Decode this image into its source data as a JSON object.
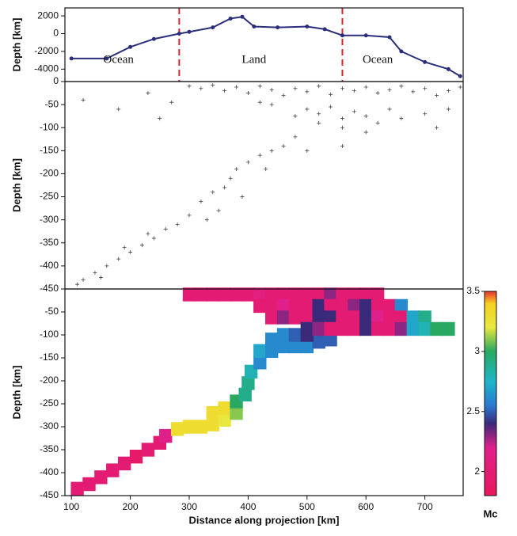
{
  "chart_data": [
    {
      "type": "line",
      "ylabel": "Depth [km]",
      "xlim": [
        89,
        765
      ],
      "ylim": [
        -5400,
        2900
      ],
      "yticks": [
        2000,
        0,
        -2000,
        -4000
      ],
      "x": [
        100,
        160,
        200,
        240,
        283,
        300,
        340,
        370,
        390,
        410,
        450,
        500,
        530,
        560,
        600,
        640,
        660,
        700,
        740,
        760
      ],
      "series": [
        {
          "color": "#2b2f7a",
          "values": [
            -2800,
            -2800,
            -1500,
            -600,
            0,
            200,
            700,
            1700,
            1900,
            800,
            700,
            800,
            500,
            -200,
            -200,
            -400,
            -2000,
            -3200,
            -4000,
            -4800
          ]
        }
      ],
      "boundaries": [
        283,
        560
      ],
      "boundary_color": "#e0202a",
      "annotations": [
        {
          "text": "Ocean",
          "x": 180,
          "y": -3000
        },
        {
          "text": "Land",
          "x": 410,
          "y": -3000
        },
        {
          "text": "Ocean",
          "x": 620,
          "y": -3000
        }
      ]
    },
    {
      "type": "scatter",
      "ylabel": "Depth [km]",
      "xlim": [
        89,
        765
      ],
      "ylim": [
        -450,
        0
      ],
      "yticks": [
        0,
        -50,
        -100,
        -150,
        -200,
        -250,
        -300,
        -350,
        -400,
        -450
      ],
      "color": "#444",
      "x": [
        300,
        320,
        340,
        360,
        380,
        400,
        420,
        440,
        460,
        480,
        500,
        520,
        540,
        560,
        580,
        600,
        620,
        640,
        660,
        680,
        700,
        720,
        740,
        760,
        500,
        520,
        540,
        560,
        580,
        600,
        620,
        640,
        560,
        600,
        520,
        480,
        440,
        420,
        660,
        700,
        740,
        720,
        480,
        460,
        440,
        420,
        400,
        380,
        370,
        360,
        340,
        320,
        350,
        300,
        280,
        260,
        240,
        220,
        200,
        180,
        160,
        140,
        120,
        110,
        150,
        190,
        230,
        330,
        390,
        430,
        500,
        560,
        120,
        180,
        230,
        270,
        250
      ],
      "y": [
        -10,
        -15,
        -8,
        -20,
        -12,
        -25,
        -10,
        -18,
        -30,
        -15,
        -22,
        -10,
        -28,
        -15,
        -20,
        -12,
        -25,
        -18,
        -10,
        -22,
        -15,
        -30,
        -20,
        -12,
        -60,
        -70,
        -55,
        -80,
        -65,
        -75,
        -90,
        -60,
        -100,
        -110,
        -90,
        -75,
        -50,
        -45,
        -80,
        -70,
        -60,
        -100,
        -120,
        -140,
        -150,
        -160,
        -175,
        -190,
        -210,
        -230,
        -240,
        -260,
        -280,
        -290,
        -310,
        -320,
        -340,
        -355,
        -370,
        -385,
        -400,
        -415,
        -430,
        -440,
        -425,
        -360,
        -330,
        -300,
        -250,
        -190,
        -150,
        -140,
        -40,
        -60,
        -25,
        -45,
        -80
      ]
    },
    {
      "type": "heatmap",
      "ylabel": "Depth [km]",
      "xlabel": "Distance along projection  [km]",
      "xlim": [
        89,
        765
      ],
      "ylim": [
        -450,
        0
      ],
      "xticks": [
        100,
        200,
        300,
        400,
        500,
        600,
        700
      ],
      "yticks": [
        -50,
        -100,
        -150,
        -200,
        -250,
        -300,
        -350,
        -400,
        -450
      ],
      "x": [
        110,
        130,
        150,
        170,
        190,
        210,
        230,
        250,
        260,
        280,
        300,
        320,
        340,
        340,
        360,
        360,
        380,
        380,
        395,
        400,
        405,
        420,
        420,
        440,
        460,
        480,
        500,
        520,
        540,
        440,
        460,
        480,
        500,
        300,
        320,
        340,
        360,
        380,
        400,
        420,
        440,
        460,
        480,
        500,
        520,
        540,
        560,
        580,
        600,
        620,
        420,
        440,
        460,
        480,
        500,
        520,
        540,
        560,
        580,
        600,
        620,
        640,
        660,
        440,
        460,
        480,
        500,
        520,
        540,
        560,
        580,
        600,
        620,
        640,
        660,
        680,
        700,
        500,
        520,
        540,
        560,
        580,
        600,
        620,
        640,
        660,
        680,
        700,
        720,
        740
      ],
      "y": [
        -435,
        -425,
        -410,
        -395,
        -380,
        -365,
        -350,
        -335,
        -320,
        -305,
        -300,
        -300,
        -295,
        -270,
        -285,
        -260,
        -270,
        -245,
        -230,
        -205,
        -180,
        -160,
        -135,
        -135,
        -125,
        -125,
        -125,
        -115,
        -110,
        -110,
        -100,
        -100,
        -100,
        -12,
        -12,
        -12,
        -12,
        -12,
        -12,
        -12,
        -12,
        -12,
        -12,
        -12,
        -12,
        -12,
        -12,
        -12,
        -12,
        -12,
        -37,
        -37,
        -37,
        -37,
        -37,
        -37,
        -37,
        -37,
        -37,
        -37,
        -37,
        -37,
        -37,
        -62,
        -62,
        -62,
        -62,
        -62,
        -62,
        -62,
        -62,
        -62,
        -62,
        -62,
        -62,
        -62,
        -62,
        -87,
        -87,
        -87,
        -87,
        -87,
        -87,
        -87,
        -87,
        -87,
        -87,
        -87,
        -87,
        -87
      ],
      "values": [
        2.0,
        2.0,
        2.0,
        2.0,
        2.0,
        1.9,
        2.0,
        2.0,
        2.2,
        3.3,
        3.3,
        3.3,
        3.3,
        3.3,
        3.2,
        3.3,
        3.1,
        3.0,
        2.9,
        2.9,
        2.8,
        2.6,
        2.7,
        2.6,
        2.6,
        2.6,
        2.6,
        2.5,
        2.5,
        2.6,
        2.6,
        2.5,
        2.4,
        2.0,
        2.0,
        2.0,
        2.0,
        2.0,
        2.0,
        2.1,
        2.0,
        2.0,
        2.0,
        2.0,
        2.0,
        2.3,
        2.0,
        2.0,
        2.0,
        2.0,
        2.0,
        2.0,
        2.2,
        2.0,
        2.0,
        2.4,
        2.0,
        2.0,
        2.3,
        2.4,
        2.0,
        2.0,
        2.6,
        2.0,
        2.3,
        2.0,
        2.0,
        2.4,
        2.4,
        2.0,
        2.0,
        2.4,
        2.2,
        2.0,
        2.0,
        2.7,
        2.9,
        2.4,
        2.3,
        2.0,
        2.0,
        2.0,
        2.4,
        2.0,
        2.0,
        2.3,
        2.7,
        2.8,
        3.0,
        3.0
      ],
      "colorscale": [
        [
          1.8,
          "#e8175d"
        ],
        [
          2.2,
          "#e0208a"
        ],
        [
          2.4,
          "#3a2a7a"
        ],
        [
          2.55,
          "#2a7ad0"
        ],
        [
          2.75,
          "#1fb5c8"
        ],
        [
          3.0,
          "#28a860"
        ],
        [
          3.2,
          "#e8e840"
        ],
        [
          3.4,
          "#f5d020"
        ],
        [
          3.5,
          "#e83030"
        ]
      ],
      "colorbar": {
        "label": "Mc",
        "lim": [
          1.8,
          3.5
        ],
        "ticks": [
          2,
          2.5,
          3,
          3.5
        ]
      }
    }
  ]
}
